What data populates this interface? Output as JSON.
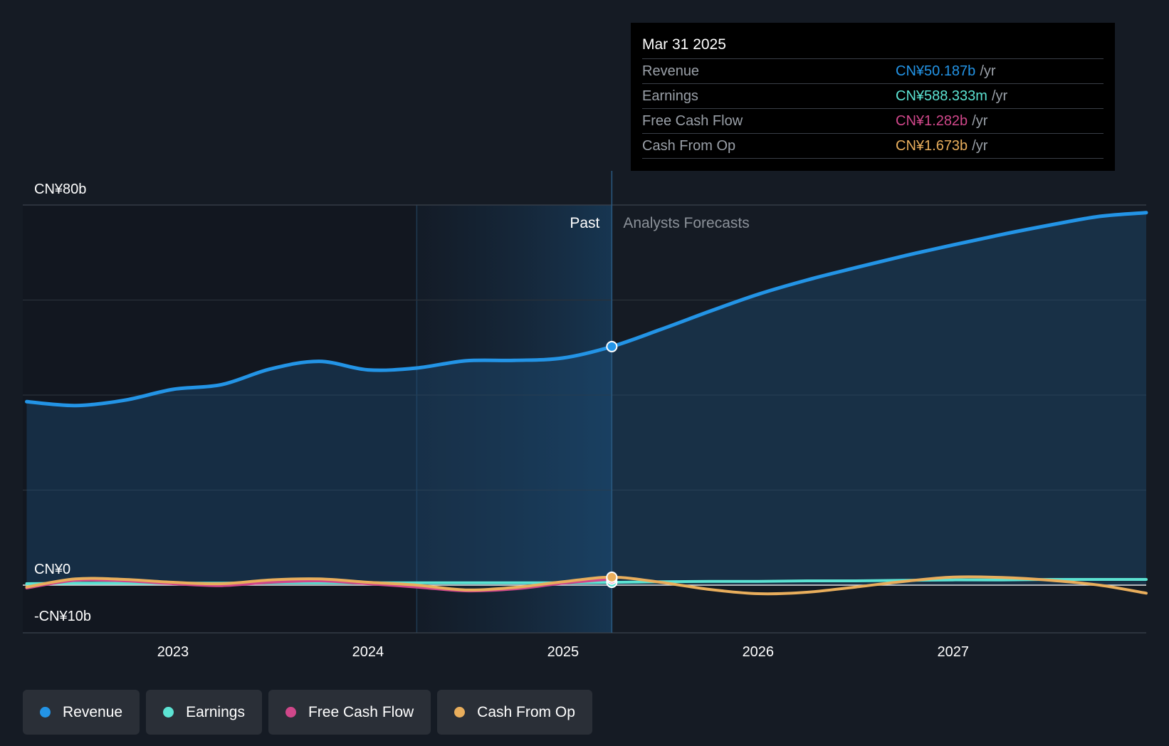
{
  "chart_data": {
    "type": "line",
    "y_unit": "CN¥ billions",
    "ylim": [
      -10,
      80
    ],
    "y_tick_labels": [
      {
        "value": 80,
        "label": "CN¥80b"
      },
      {
        "value": 0,
        "label": "CN¥0"
      },
      {
        "value": -10,
        "label": "-CN¥10b"
      }
    ],
    "xlim": [
      2022.23,
      2027.99
    ],
    "x_ticks": [
      2023,
      2024,
      2025,
      2026,
      2027
    ],
    "x_tick_labels": [
      "2023",
      "2024",
      "2025",
      "2026",
      "2027"
    ],
    "highlight_range": [
      2024.25,
      2025.25
    ],
    "divider_x": 2025.25,
    "past_label": "Past",
    "forecast_label": "Analysts Forecasts",
    "series": [
      {
        "name": "Revenue",
        "color": "#2394e6",
        "points": [
          [
            2022.25,
            38.6
          ],
          [
            2022.5,
            37.8
          ],
          [
            2022.75,
            38.9
          ],
          [
            2023.0,
            41.2
          ],
          [
            2023.25,
            42.2
          ],
          [
            2023.5,
            45.5
          ],
          [
            2023.75,
            47.1
          ],
          [
            2024.0,
            45.3
          ],
          [
            2024.25,
            45.7
          ],
          [
            2024.5,
            47.2
          ],
          [
            2024.75,
            47.3
          ],
          [
            2025.0,
            47.8
          ],
          [
            2025.25,
            50.2
          ],
          [
            2025.5,
            53.8
          ],
          [
            2025.75,
            57.6
          ],
          [
            2026.0,
            61.2
          ],
          [
            2026.25,
            64.2
          ],
          [
            2026.5,
            66.8
          ],
          [
            2026.75,
            69.3
          ],
          [
            2027.0,
            71.6
          ],
          [
            2027.25,
            73.8
          ],
          [
            2027.5,
            75.8
          ],
          [
            2027.75,
            77.6
          ],
          [
            2027.99,
            78.4
          ]
        ]
      },
      {
        "name": "Earnings",
        "color": "#5ce3d3",
        "points": [
          [
            2022.25,
            0.3
          ],
          [
            2022.5,
            0.4
          ],
          [
            2022.75,
            0.4
          ],
          [
            2023.0,
            0.4
          ],
          [
            2023.25,
            0.4
          ],
          [
            2023.5,
            0.5
          ],
          [
            2023.75,
            0.5
          ],
          [
            2024.0,
            0.5
          ],
          [
            2024.25,
            0.5
          ],
          [
            2024.5,
            0.5
          ],
          [
            2024.75,
            0.5
          ],
          [
            2025.0,
            0.5
          ],
          [
            2025.25,
            0.59
          ],
          [
            2025.5,
            0.7
          ],
          [
            2025.75,
            0.8
          ],
          [
            2026.0,
            0.8
          ],
          [
            2026.25,
            0.9
          ],
          [
            2026.5,
            0.9
          ],
          [
            2026.75,
            1.0
          ],
          [
            2027.0,
            1.1
          ],
          [
            2027.25,
            1.1
          ],
          [
            2027.5,
            1.2
          ],
          [
            2027.75,
            1.2
          ],
          [
            2027.99,
            1.2
          ]
        ]
      },
      {
        "name": "Free Cash Flow",
        "color": "#d0478a",
        "points": [
          [
            2022.25,
            -0.6
          ],
          [
            2022.5,
            1.0
          ],
          [
            2022.75,
            0.9
          ],
          [
            2023.0,
            0.3
          ],
          [
            2023.25,
            -0.1
          ],
          [
            2023.5,
            0.6
          ],
          [
            2023.75,
            0.9
          ],
          [
            2024.0,
            0.3
          ],
          [
            2024.25,
            -0.4
          ],
          [
            2024.5,
            -1.2
          ],
          [
            2024.75,
            -0.8
          ],
          [
            2025.0,
            0.4
          ],
          [
            2025.25,
            1.28
          ]
        ]
      },
      {
        "name": "Cash From Op",
        "color": "#e9ae5c",
        "points": [
          [
            2022.25,
            -0.4
          ],
          [
            2022.5,
            1.3
          ],
          [
            2022.75,
            1.2
          ],
          [
            2023.0,
            0.6
          ],
          [
            2023.25,
            0.3
          ],
          [
            2023.5,
            1.1
          ],
          [
            2023.75,
            1.3
          ],
          [
            2024.0,
            0.6
          ],
          [
            2024.25,
            0.0
          ],
          [
            2024.5,
            -1.0
          ],
          [
            2024.75,
            -0.5
          ],
          [
            2025.0,
            0.7
          ],
          [
            2025.25,
            1.67
          ],
          [
            2025.5,
            0.6
          ],
          [
            2025.75,
            -0.9
          ],
          [
            2026.0,
            -1.8
          ],
          [
            2026.25,
            -1.5
          ],
          [
            2026.5,
            -0.4
          ],
          [
            2026.75,
            0.8
          ],
          [
            2027.0,
            1.7
          ],
          [
            2027.25,
            1.6
          ],
          [
            2027.5,
            1.0
          ],
          [
            2027.75,
            0.0
          ],
          [
            2027.99,
            -1.7
          ]
        ]
      }
    ]
  },
  "tooltip": {
    "date": "Mar 31 2025",
    "rows": [
      {
        "label": "Revenue",
        "value": "CN¥50.187b",
        "unit": "/yr",
        "color": "#2394e6"
      },
      {
        "label": "Earnings",
        "value": "CN¥588.333m",
        "unit": "/yr",
        "color": "#5ce3d3"
      },
      {
        "label": "Free Cash Flow",
        "value": "CN¥1.282b",
        "unit": "/yr",
        "color": "#d0478a"
      },
      {
        "label": "Cash From Op",
        "value": "CN¥1.673b",
        "unit": "/yr",
        "color": "#e9ae5c"
      }
    ]
  },
  "legend": [
    {
      "label": "Revenue",
      "color": "#2394e6"
    },
    {
      "label": "Earnings",
      "color": "#5ce3d3"
    },
    {
      "label": "Free Cash Flow",
      "color": "#d0478a"
    },
    {
      "label": "Cash From Op",
      "color": "#e9ae5c"
    }
  ]
}
